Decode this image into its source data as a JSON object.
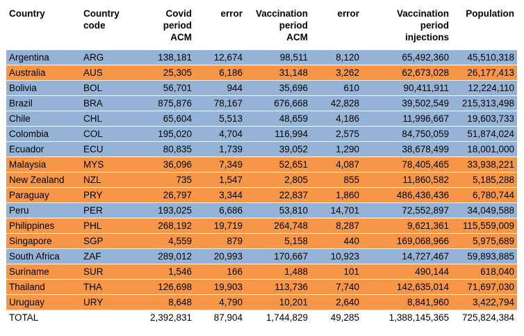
{
  "headers": {
    "country": [
      "Country"
    ],
    "code": [
      "Country",
      "code"
    ],
    "covid_acm": [
      "Covid",
      "period",
      "ACM"
    ],
    "error1": [
      "error"
    ],
    "vacc_acm": [
      "Vaccination",
      "period",
      "ACM"
    ],
    "error2": [
      "error"
    ],
    "injections": [
      "Vaccination",
      "period",
      "injections"
    ],
    "population": [
      "Population"
    ]
  },
  "colors": {
    "blue": "#95b3d7",
    "orange": "#f79646",
    "white": "#ffffff"
  },
  "rows": [
    {
      "country": "Argentina",
      "code": "ARG",
      "covid_acm": "138,181",
      "error1": "12,674",
      "vacc_acm": "98,511",
      "error2": "8,120",
      "injections": "65,492,360",
      "population": "45,510,318",
      "color": "blue"
    },
    {
      "country": "Australia",
      "code": "AUS",
      "covid_acm": "25,305",
      "error1": "6,186",
      "vacc_acm": "31,148",
      "error2": "3,262",
      "injections": "62,673,028",
      "population": "26,177,413",
      "color": "orange"
    },
    {
      "country": "Bolivia",
      "code": "BOL",
      "covid_acm": "56,701",
      "error1": "944",
      "vacc_acm": "35,696",
      "error2": "610",
      "injections": "90,411,911",
      "population": "12,224,110",
      "color": "blue"
    },
    {
      "country": "Brazil",
      "code": "BRA",
      "covid_acm": "875,876",
      "error1": "78,167",
      "vacc_acm": "676,668",
      "error2": "42,828",
      "injections": "39,502,549",
      "population": "215,313,498",
      "color": "blue"
    },
    {
      "country": "Chile",
      "code": "CHL",
      "covid_acm": "65,604",
      "error1": "5,513",
      "vacc_acm": "48,659",
      "error2": "4,186",
      "injections": "11,996,667",
      "population": "19,603,733",
      "color": "blue"
    },
    {
      "country": "Colombia",
      "code": "COL",
      "covid_acm": "195,020",
      "error1": "4,704",
      "vacc_acm": "116,994",
      "error2": "2,575",
      "injections": "84,750,059",
      "population": "51,874,024",
      "color": "blue"
    },
    {
      "country": "Ecuador",
      "code": "ECU",
      "covid_acm": "80,835",
      "error1": "1,739",
      "vacc_acm": "39,052",
      "error2": "1,290",
      "injections": "38,678,499",
      "population": "18,001,000",
      "color": "blue"
    },
    {
      "country": "Malaysia",
      "code": "MYS",
      "covid_acm": "36,096",
      "error1": "7,349",
      "vacc_acm": "52,651",
      "error2": "4,087",
      "injections": "78,405,465",
      "population": "33,938,221",
      "color": "orange"
    },
    {
      "country": "New Zealand",
      "code": "NZL",
      "covid_acm": "735",
      "error1": "1,547",
      "vacc_acm": "2,805",
      "error2": "855",
      "injections": "11,860,582",
      "population": "5,185,288",
      "color": "orange"
    },
    {
      "country": "Paraguay",
      "code": "PRY",
      "covid_acm": "26,797",
      "error1": "3,344",
      "vacc_acm": "22,837",
      "error2": "1,860",
      "injections": "486,436,436",
      "population": "6,780,744",
      "color": "orange"
    },
    {
      "country": "Peru",
      "code": "PER",
      "covid_acm": "193,025",
      "error1": "6,686",
      "vacc_acm": "53,810",
      "error2": "14,701",
      "injections": "72,552,897",
      "population": "34,049,588",
      "color": "blue"
    },
    {
      "country": "Philippines",
      "code": "PHL",
      "covid_acm": "268,192",
      "error1": "19,719",
      "vacc_acm": "264,748",
      "error2": "8,287",
      "injections": "9,621,361",
      "population": "115,559,009",
      "color": "orange"
    },
    {
      "country": "Singapore",
      "code": "SGP",
      "covid_acm": "4,559",
      "error1": "879",
      "vacc_acm": "5,158",
      "error2": "440",
      "injections": "169,068,966",
      "population": "5,975,689",
      "color": "orange"
    },
    {
      "country": "South Africa",
      "code": "ZAF",
      "covid_acm": "289,012",
      "error1": "20,993",
      "vacc_acm": "170,667",
      "error2": "10,923",
      "injections": "14,727,467",
      "population": "59,893,885",
      "color": "blue"
    },
    {
      "country": "Suriname",
      "code": "SUR",
      "covid_acm": "1,546",
      "error1": "166",
      "vacc_acm": "1,488",
      "error2": "101",
      "injections": "490,144",
      "population": "618,040",
      "color": "orange"
    },
    {
      "country": "Thailand",
      "code": "THA",
      "covid_acm": "126,698",
      "error1": "19,903",
      "vacc_acm": "113,736",
      "error2": "7,740",
      "injections": "142,635,014",
      "population": "71,697,030",
      "color": "orange"
    },
    {
      "country": "Uruguay",
      "code": "URY",
      "covid_acm": "8,648",
      "error1": "4,790",
      "vacc_acm": "10,201",
      "error2": "2,640",
      "injections": "8,841,960",
      "population": "3,422,794",
      "color": "orange"
    }
  ],
  "total": {
    "country": "TOTAL",
    "code": "",
    "covid_acm": "2,392,831",
    "error1": "87,904",
    "vacc_acm": "1,744,829",
    "error2": "49,285",
    "injections": "1,388,145,365",
    "population": "725,824,384"
  }
}
